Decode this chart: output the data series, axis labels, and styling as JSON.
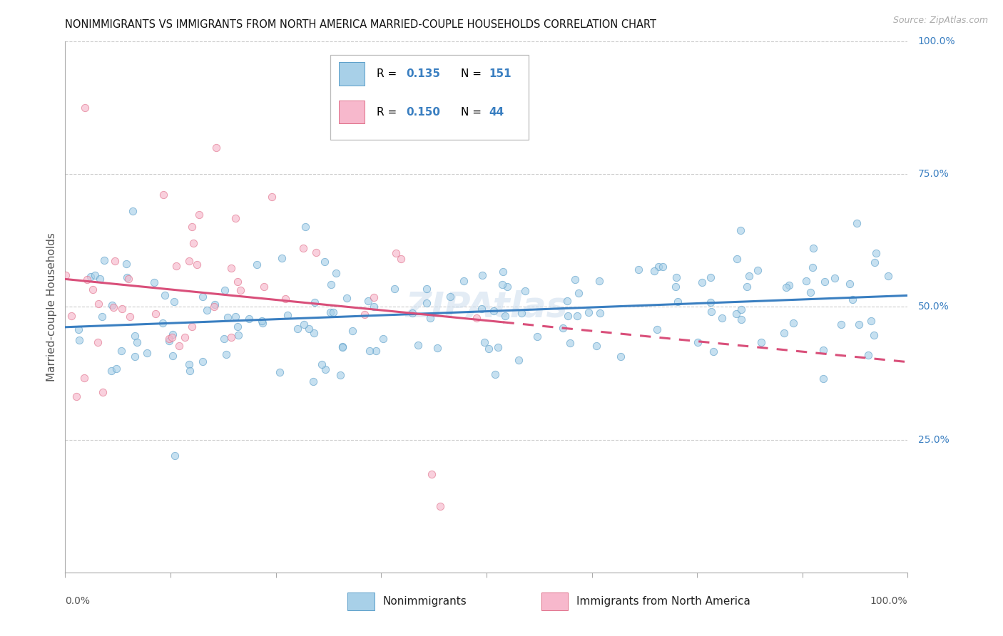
{
  "title": "NONIMMIGRANTS VS IMMIGRANTS FROM NORTH AMERICA MARRIED-COUPLE HOUSEHOLDS CORRELATION CHART",
  "source": "Source: ZipAtlas.com",
  "ylabel": "Married-couple Households",
  "R_blue": 0.135,
  "N_blue": 151,
  "R_pink": 0.15,
  "N_pink": 44,
  "color_blue_fill": "#a8d0e8",
  "color_blue_edge": "#5b9ec9",
  "color_pink_fill": "#f7b8cc",
  "color_pink_edge": "#e0708a",
  "color_blue_line": "#3a7fc1",
  "color_pink_line": "#d94f7a",
  "color_blue_text": "#3a7fc1",
  "color_grid": "#cccccc",
  "color_title": "#111111",
  "color_source": "#aaaaaa",
  "color_axis_label": "#555555",
  "watermark": "ZIPAtlas",
  "xlim": [
    0.0,
    1.0
  ],
  "ylim": [
    0.0,
    1.0
  ],
  "ytick_vals": [
    0.25,
    0.5,
    0.75,
    1.0
  ],
  "ytick_labels": [
    "25.0%",
    "50.0%",
    "75.0%",
    "100.0%"
  ],
  "title_fontsize": 10.5,
  "source_fontsize": 9,
  "axis_label_fontsize": 10,
  "tick_label_fontsize": 10,
  "legend_fontsize": 11,
  "marker_size": 55,
  "marker_alpha": 0.65,
  "line_width": 2.2
}
